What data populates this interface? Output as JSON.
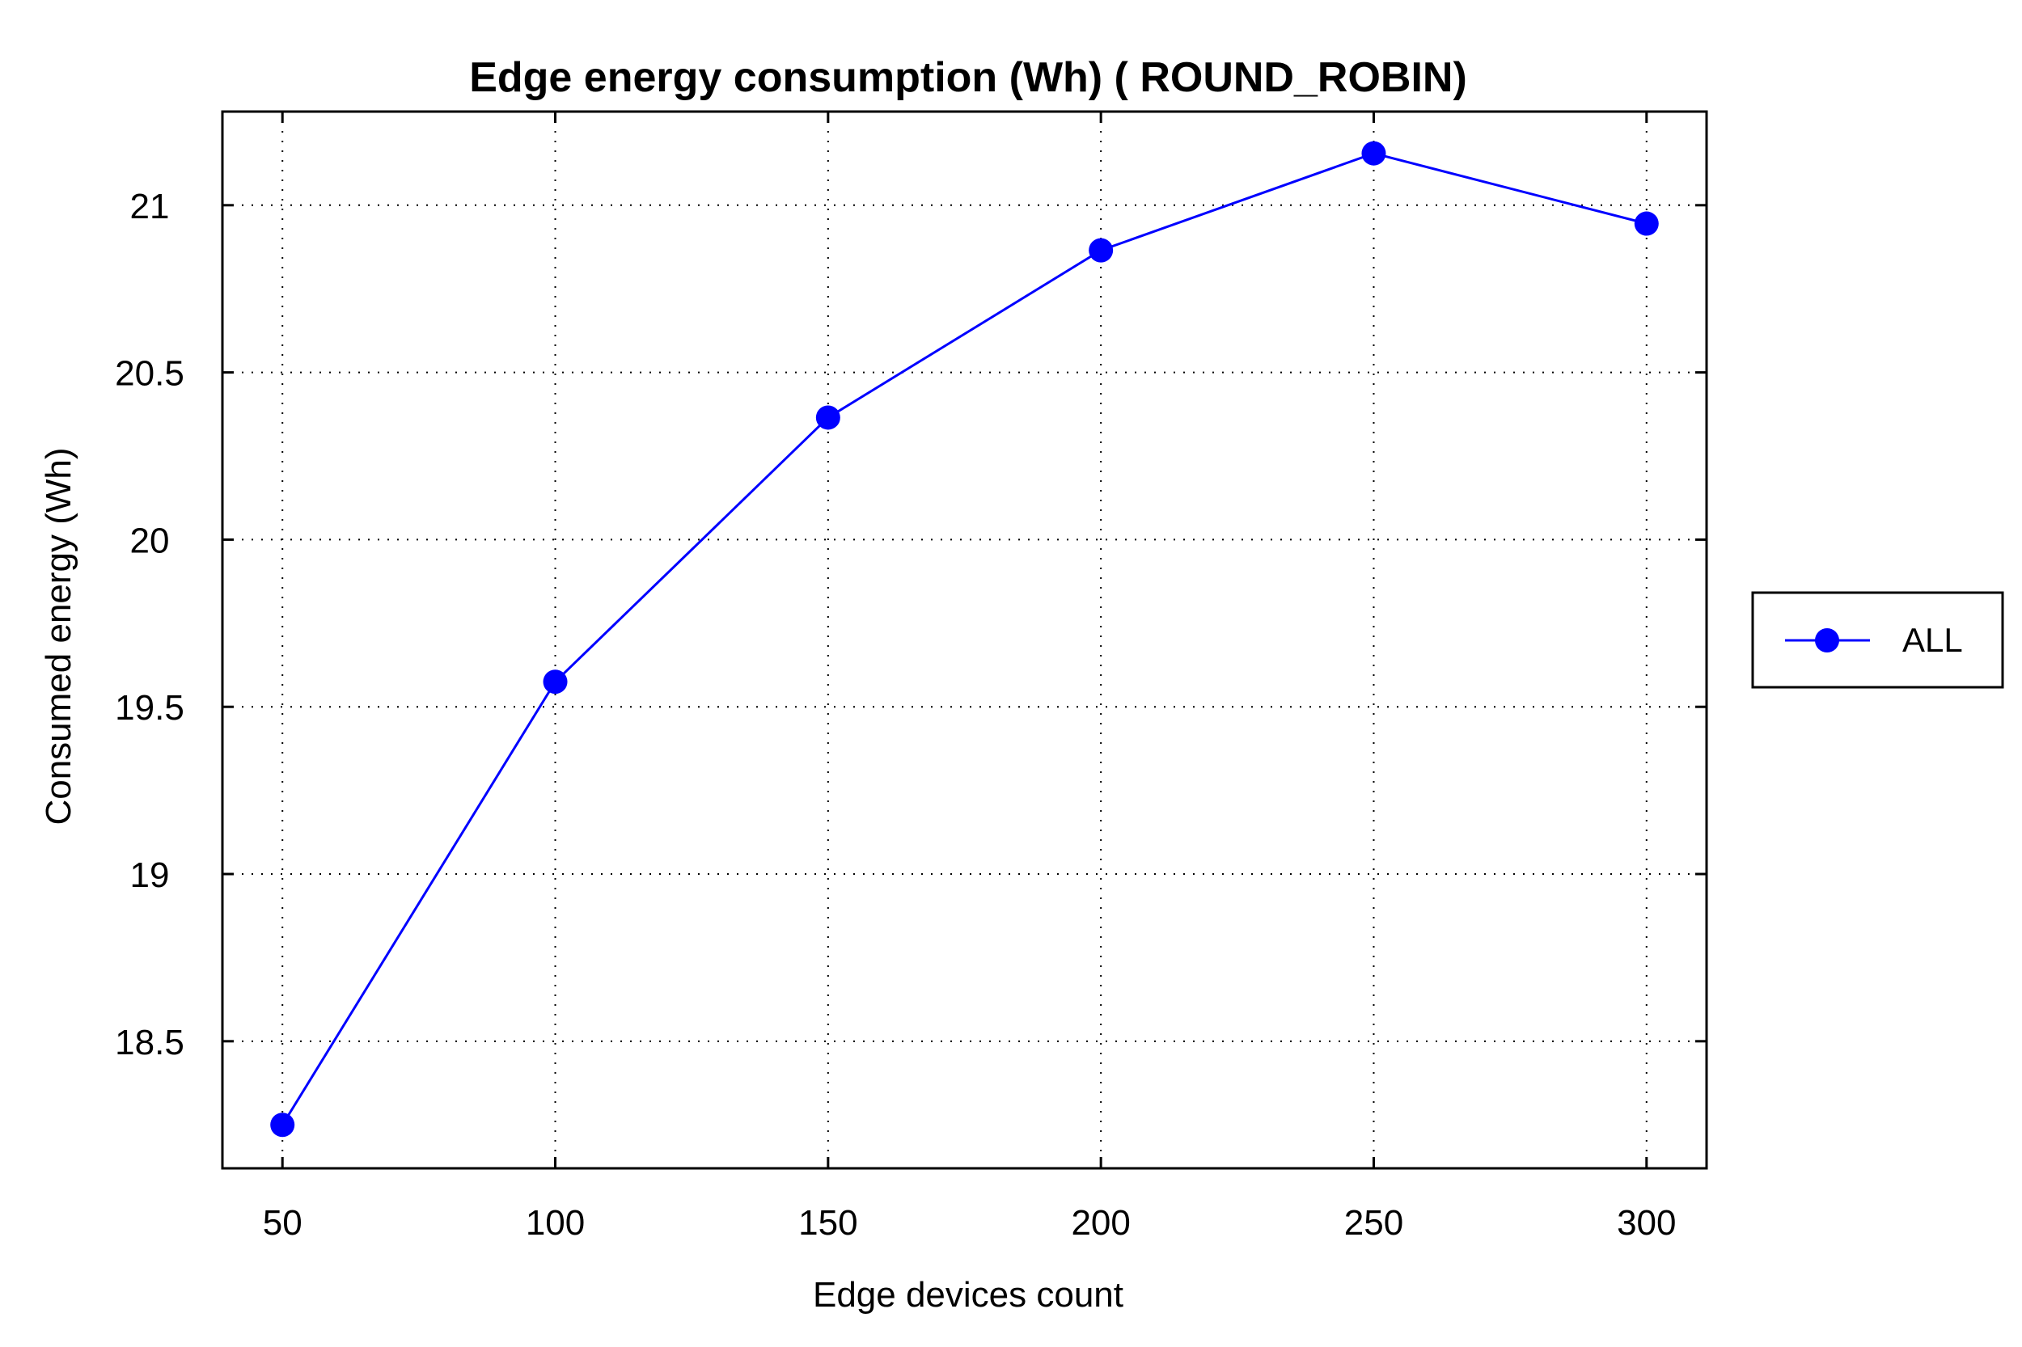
{
  "chart_data": {
    "type": "line",
    "title": "Edge energy consumption (Wh) ( ROUND_ROBIN)",
    "xlabel": "Edge devices count",
    "ylabel": "Consumed energy (Wh)",
    "x": [
      50,
      100,
      150,
      200,
      250,
      300
    ],
    "xticks": [
      "50",
      "100",
      "150",
      "200",
      "250",
      "300"
    ],
    "yticks": [
      "18.5",
      "19",
      "19.5",
      "20",
      "20.5",
      "21"
    ],
    "ytick_values": [
      18.5,
      19,
      19.5,
      20,
      20.5,
      21
    ],
    "xlim": [
      39,
      311
    ],
    "ylim": [
      18.12,
      21.28
    ],
    "grid": true,
    "legend_position": "right",
    "series": [
      {
        "name": "ALL",
        "values": [
          18.25,
          19.575,
          20.365,
          20.865,
          21.155,
          20.945
        ],
        "color": "#0000ff",
        "marker": "circle"
      }
    ]
  }
}
